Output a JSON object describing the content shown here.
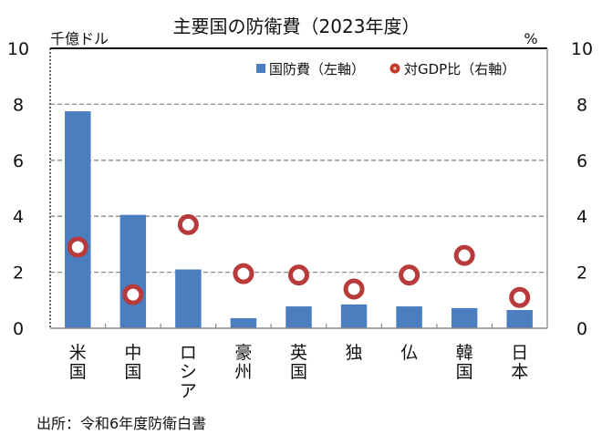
{
  "chart_data": {
    "type": "bar",
    "title": "主要国の防衛費（2023年度）",
    "ylabel_left": "千億ドル",
    "ylabel_right": "%",
    "ylim_left": [
      0,
      10
    ],
    "ylim_right": [
      0,
      10
    ],
    "yticks_left": [
      "0",
      "2",
      "4",
      "6",
      "8",
      "10"
    ],
    "yticks_right": [
      "0",
      "2",
      "4",
      "6",
      "8",
      "10"
    ],
    "grid": true,
    "legend_position": "top-right",
    "categories": [
      "米国",
      "中国",
      "ロシア",
      "豪州",
      "英国",
      "独",
      "仏",
      "韓国",
      "日本"
    ],
    "series": [
      {
        "name": "国防費（左軸）",
        "type": "bar",
        "axis": "left",
        "color": "#4a7ebf",
        "values": [
          7.75,
          4.05,
          2.1,
          0.36,
          0.78,
          0.85,
          0.78,
          0.72,
          0.65
        ]
      },
      {
        "name": "対GDP比（右軸）",
        "type": "scatter",
        "axis": "right",
        "color": "#c0392b",
        "values": [
          2.9,
          1.2,
          3.7,
          1.95,
          1.9,
          1.4,
          1.9,
          2.6,
          1.1
        ]
      }
    ],
    "source": "出所：令和6年度防衛白書"
  }
}
